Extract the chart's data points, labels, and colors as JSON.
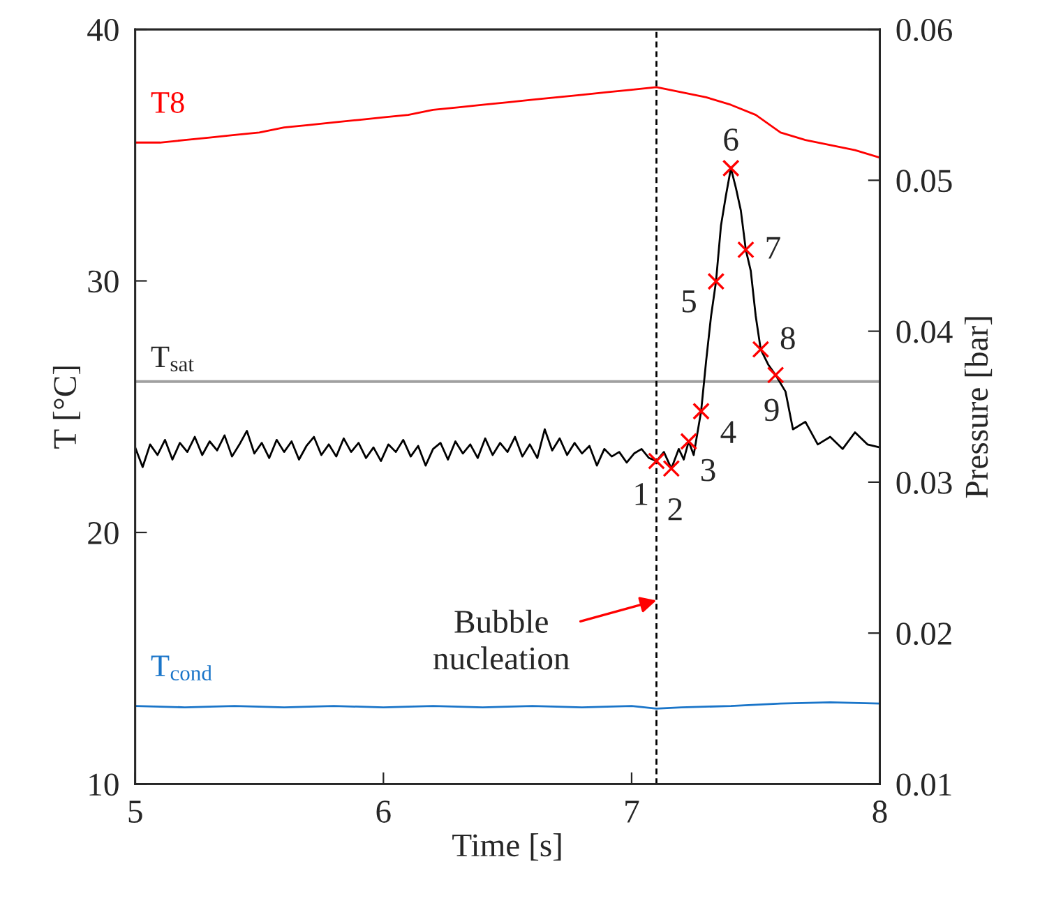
{
  "chart_data": {
    "type": "line",
    "xlabel": "Time [s]",
    "ylabel": "T [°C]",
    "y2label": "Pressure [bar]",
    "xlim": [
      5,
      8
    ],
    "xticks": [
      5,
      6,
      7,
      8
    ],
    "ylim": [
      10,
      40
    ],
    "yticks": [
      10,
      20,
      30,
      40
    ],
    "y2lim": [
      0.01,
      0.06
    ],
    "y2ticks": [
      0.01,
      0.02,
      0.03,
      0.04,
      0.05,
      0.06
    ],
    "series": [
      {
        "name": "T8",
        "color": "#ff0000",
        "axis": "y",
        "x": [
          5.0,
          5.1,
          5.2,
          5.3,
          5.4,
          5.5,
          5.6,
          5.7,
          5.8,
          5.9,
          6.0,
          6.1,
          6.2,
          6.3,
          6.4,
          6.5,
          6.6,
          6.7,
          6.8,
          6.9,
          7.0,
          7.1,
          7.2,
          7.3,
          7.4,
          7.5,
          7.6,
          7.7,
          7.8,
          7.9,
          8.0
        ],
        "values": [
          35.5,
          35.5,
          35.6,
          35.7,
          35.8,
          35.9,
          36.1,
          36.2,
          36.3,
          36.4,
          36.5,
          36.6,
          36.8,
          36.9,
          37.0,
          37.1,
          37.2,
          37.3,
          37.4,
          37.5,
          37.6,
          37.7,
          37.5,
          37.3,
          37.0,
          36.6,
          35.9,
          35.6,
          35.4,
          35.2,
          34.9
        ]
      },
      {
        "name": "T$_{cond}$",
        "color": "#1a75c9",
        "axis": "y",
        "x": [
          5.0,
          5.2,
          5.4,
          5.6,
          5.8,
          6.0,
          6.2,
          6.4,
          6.6,
          6.8,
          7.0,
          7.1,
          7.2,
          7.4,
          7.6,
          7.8,
          8.0
        ],
        "values": [
          13.1,
          13.05,
          13.1,
          13.05,
          13.1,
          13.05,
          13.1,
          13.05,
          13.1,
          13.05,
          13.1,
          13.0,
          13.05,
          13.1,
          13.2,
          13.25,
          13.2
        ]
      },
      {
        "color": "#000000",
        "axis": "y2",
        "x": [
          5.0,
          5.03,
          5.06,
          5.09,
          5.12,
          5.15,
          5.18,
          5.21,
          5.24,
          5.27,
          5.3,
          5.33,
          5.36,
          5.39,
          5.42,
          5.45,
          5.48,
          5.51,
          5.54,
          5.57,
          5.6,
          5.63,
          5.66,
          5.69,
          5.72,
          5.75,
          5.78,
          5.81,
          5.84,
          5.87,
          5.9,
          5.93,
          5.96,
          5.99,
          6.02,
          6.05,
          6.08,
          6.11,
          6.14,
          6.17,
          6.2,
          6.23,
          6.26,
          6.29,
          6.32,
          6.35,
          6.38,
          6.41,
          6.44,
          6.47,
          6.5,
          6.53,
          6.56,
          6.59,
          6.62,
          6.65,
          6.68,
          6.71,
          6.74,
          6.77,
          6.8,
          6.83,
          6.86,
          6.89,
          6.92,
          6.95,
          6.98,
          7.01,
          7.04,
          7.07,
          7.1,
          7.13,
          7.16,
          7.19,
          7.21,
          7.23,
          7.25,
          7.28,
          7.3,
          7.32,
          7.34,
          7.36,
          7.38,
          7.4,
          7.42,
          7.44,
          7.46,
          7.48,
          7.5,
          7.52,
          7.55,
          7.58,
          7.62,
          7.65,
          7.7,
          7.75,
          7.8,
          7.85,
          7.9,
          7.95,
          8.0
        ],
        "values": [
          0.0323,
          0.031,
          0.0325,
          0.0318,
          0.0328,
          0.0315,
          0.0326,
          0.032,
          0.033,
          0.0318,
          0.0327,
          0.0321,
          0.0331,
          0.0317,
          0.0325,
          0.0334,
          0.0319,
          0.0326,
          0.0316,
          0.0328,
          0.032,
          0.0327,
          0.0315,
          0.0324,
          0.033,
          0.0318,
          0.0325,
          0.0317,
          0.0329,
          0.032,
          0.0326,
          0.0316,
          0.0323,
          0.0314,
          0.0325,
          0.032,
          0.0328,
          0.0317,
          0.0324,
          0.0311,
          0.0322,
          0.0326,
          0.0315,
          0.0327,
          0.0319,
          0.0325,
          0.0316,
          0.0329,
          0.0318,
          0.0326,
          0.032,
          0.033,
          0.0317,
          0.0325,
          0.0316,
          0.0335,
          0.0321,
          0.0329,
          0.0318,
          0.0326,
          0.0319,
          0.0324,
          0.0311,
          0.0322,
          0.0317,
          0.032,
          0.0313,
          0.0319,
          0.0322,
          0.0316,
          0.0314,
          0.032,
          0.0309,
          0.0322,
          0.0315,
          0.0327,
          0.0318,
          0.0347,
          0.038,
          0.041,
          0.0433,
          0.047,
          0.049,
          0.0508,
          0.0495,
          0.048,
          0.0454,
          0.044,
          0.041,
          0.0388,
          0.0378,
          0.0371,
          0.036,
          0.0335,
          0.034,
          0.0325,
          0.033,
          0.0322,
          0.0333,
          0.0325,
          0.0323
        ]
      },
      {
        "color": "#ff0000",
        "type": "scatter",
        "axis": "y2",
        "marker": "cross",
        "x": [
          7.1,
          7.16,
          7.23,
          7.28,
          7.34,
          7.4,
          7.46,
          7.52,
          7.58
        ],
        "values": [
          0.0314,
          0.0309,
          0.0327,
          0.0347,
          0.0433,
          0.0508,
          0.0454,
          0.0388,
          0.0371
        ]
      }
    ],
    "ref_lines": [
      {
        "axis": "y",
        "value": 26,
        "label": "T$_{sat}$",
        "color": "#a0a0a0",
        "line_style": "solid"
      },
      {
        "axis": "x",
        "value": 7.1,
        "color": "#000000",
        "line_style": "dashed"
      }
    ],
    "annotations": [
      {
        "text": "1",
        "x": 7.1,
        "y": 22.8
      },
      {
        "text": "2",
        "x": 7.16,
        "y": 22.5
      },
      {
        "text": "3",
        "x": 7.23,
        "y": 23.6
      },
      {
        "text": "4",
        "x": 7.28,
        "y": 24.8
      },
      {
        "text": "5",
        "x": 7.34,
        "y": 30.0
      },
      {
        "text": "6",
        "x": 7.4,
        "y": 34.5
      },
      {
        "text": "7",
        "x": 7.46,
        "y": 31.2
      },
      {
        "text": "8",
        "x": 7.52,
        "y": 27.3
      },
      {
        "text": "9",
        "x": 7.58,
        "y": 26.3
      },
      {
        "text": "Bubble\nnucleation",
        "x": 7.1,
        "y": 17.3
      }
    ]
  }
}
